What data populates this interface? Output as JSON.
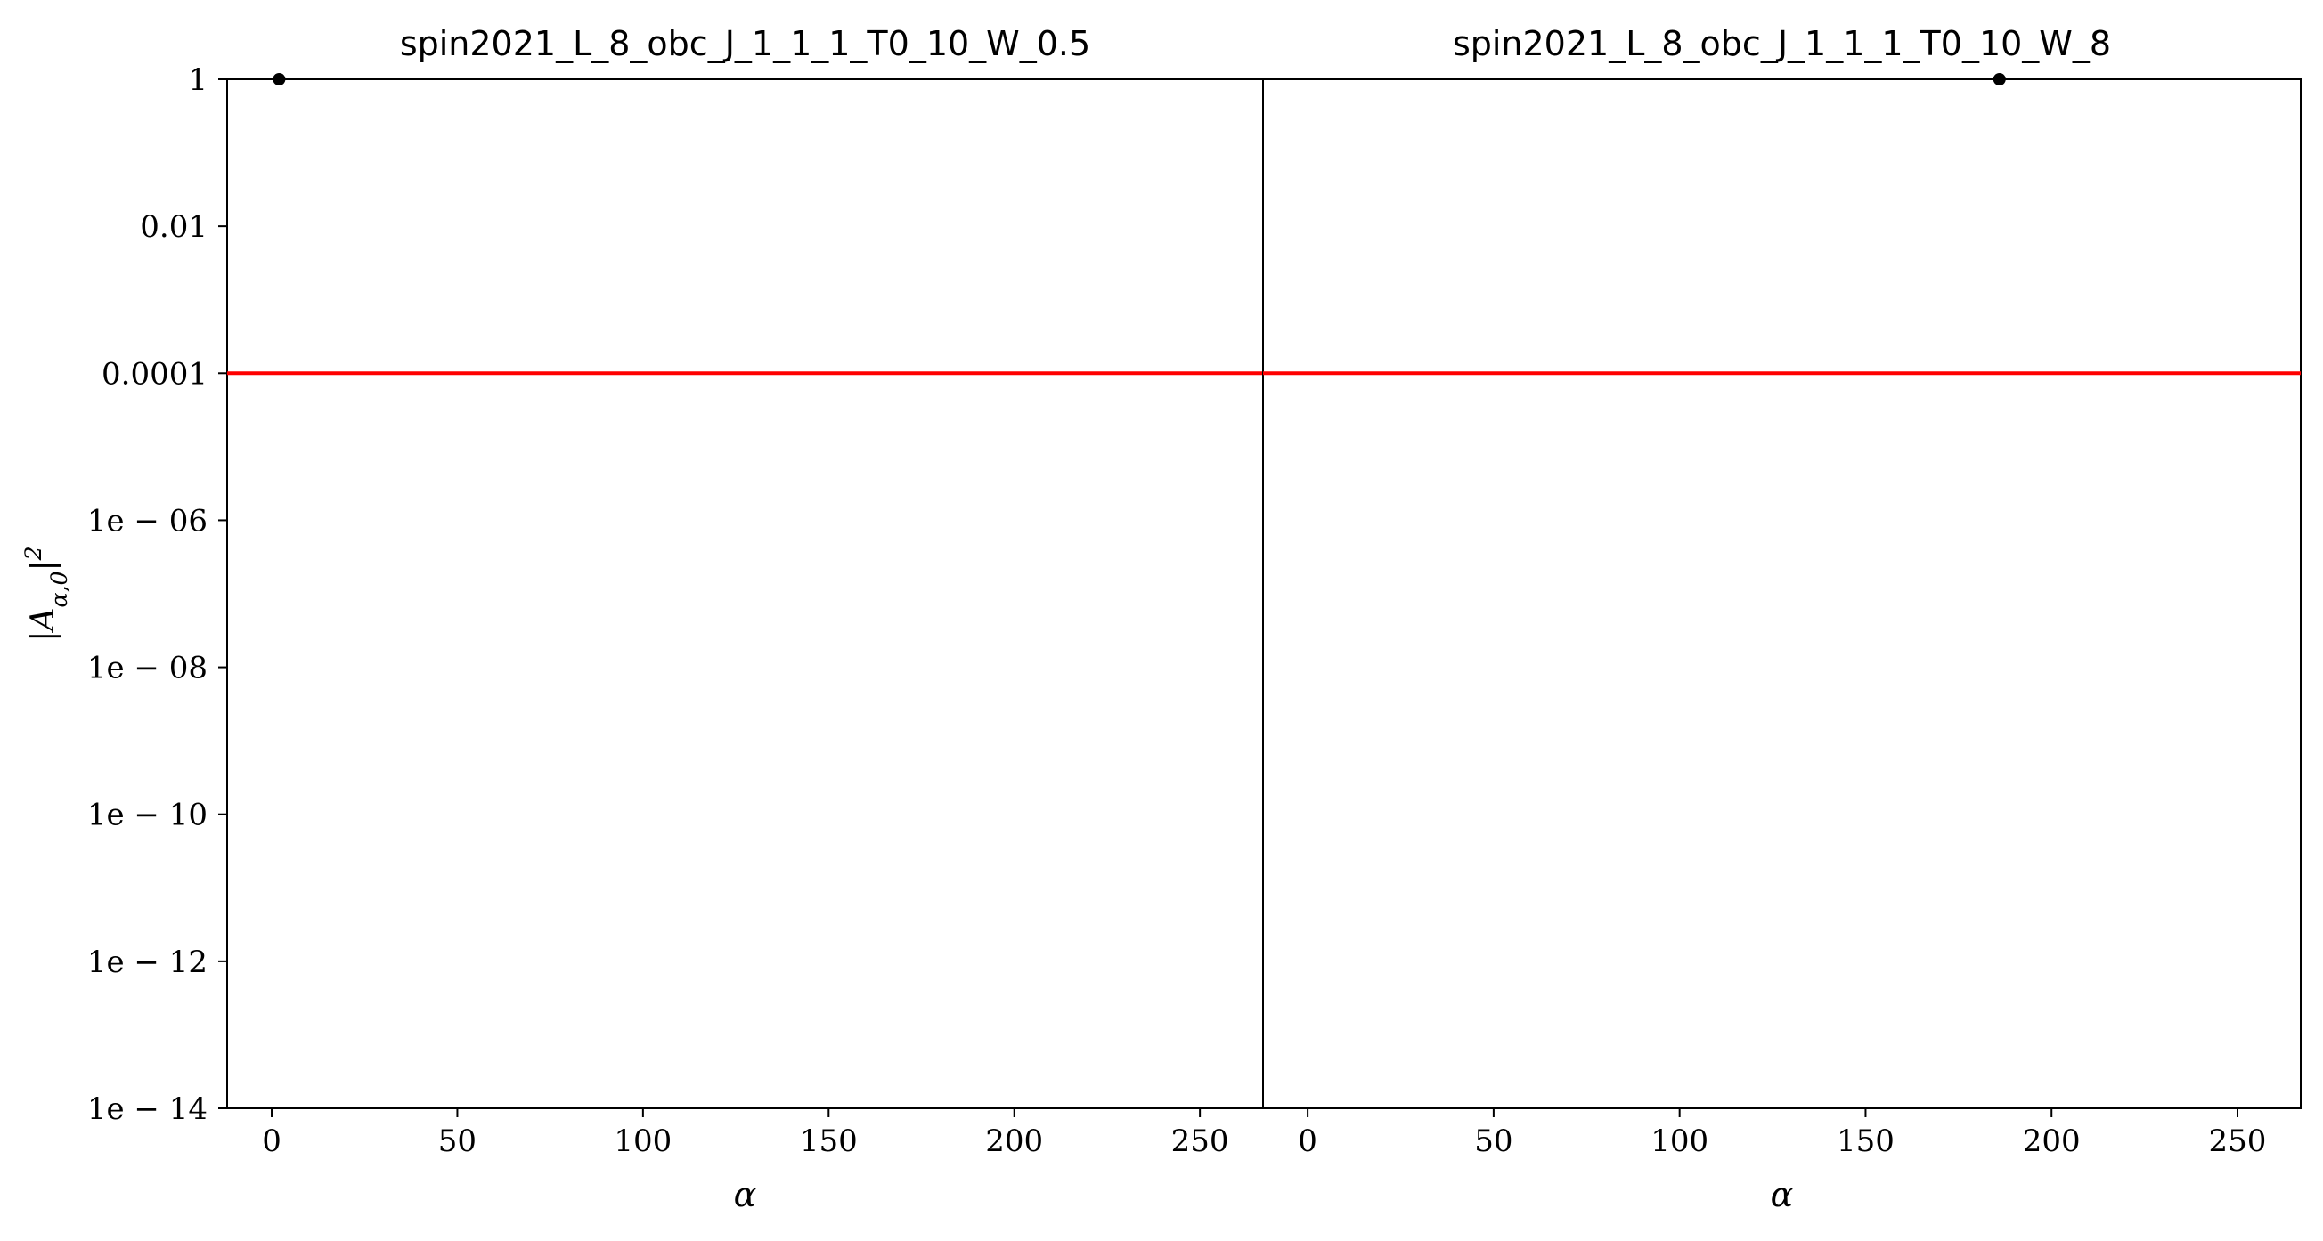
{
  "chart_data": [
    {
      "type": "scatter",
      "title": "spin2021_L_8_obc_J_1_1_1_T0_10_W_0.5",
      "xlabel": "α",
      "ylabel": "|A_{α,0}|²",
      "xlim": [
        -12,
        267
      ],
      "ylim": [
        1e-14,
        1
      ],
      "yscale": "log",
      "xticks": [
        0,
        50,
        100,
        150,
        200,
        250
      ],
      "xtick_labels": [
        "0",
        "50",
        "100",
        "150",
        "200",
        "250"
      ],
      "yticks": [
        1e-14,
        1e-12,
        1e-10,
        1e-08,
        1e-06,
        0.0001,
        0.01,
        1
      ],
      "ytick_labels": [
        "1e − 14",
        "1e − 12",
        "1e − 10",
        "1e − 08",
        "1e − 06",
        "0.0001",
        "0.01",
        "1"
      ],
      "grid": false,
      "reference_line": {
        "y": 0.0001,
        "color": "#ff0000"
      },
      "points": [
        {
          "x": 2,
          "y": 1.0
        }
      ]
    },
    {
      "type": "scatter",
      "title": "spin2021_L_8_obc_J_1_1_1_T0_10_W_8",
      "xlabel": "α",
      "ylabel": "",
      "xlim": [
        -12,
        267
      ],
      "ylim": [
        1e-14,
        1
      ],
      "yscale": "log",
      "xticks": [
        0,
        50,
        100,
        150,
        200,
        250
      ],
      "xtick_labels": [
        "0",
        "50",
        "100",
        "150",
        "200",
        "250"
      ],
      "yticks": [],
      "ytick_labels": [],
      "grid": false,
      "reference_line": {
        "y": 0.0001,
        "color": "#ff0000"
      },
      "points": [
        {
          "x": 186,
          "y": 1.0
        }
      ]
    }
  ],
  "colors": {
    "reference_line": "#ff0000",
    "points": "#000000",
    "axes": "#000000"
  }
}
